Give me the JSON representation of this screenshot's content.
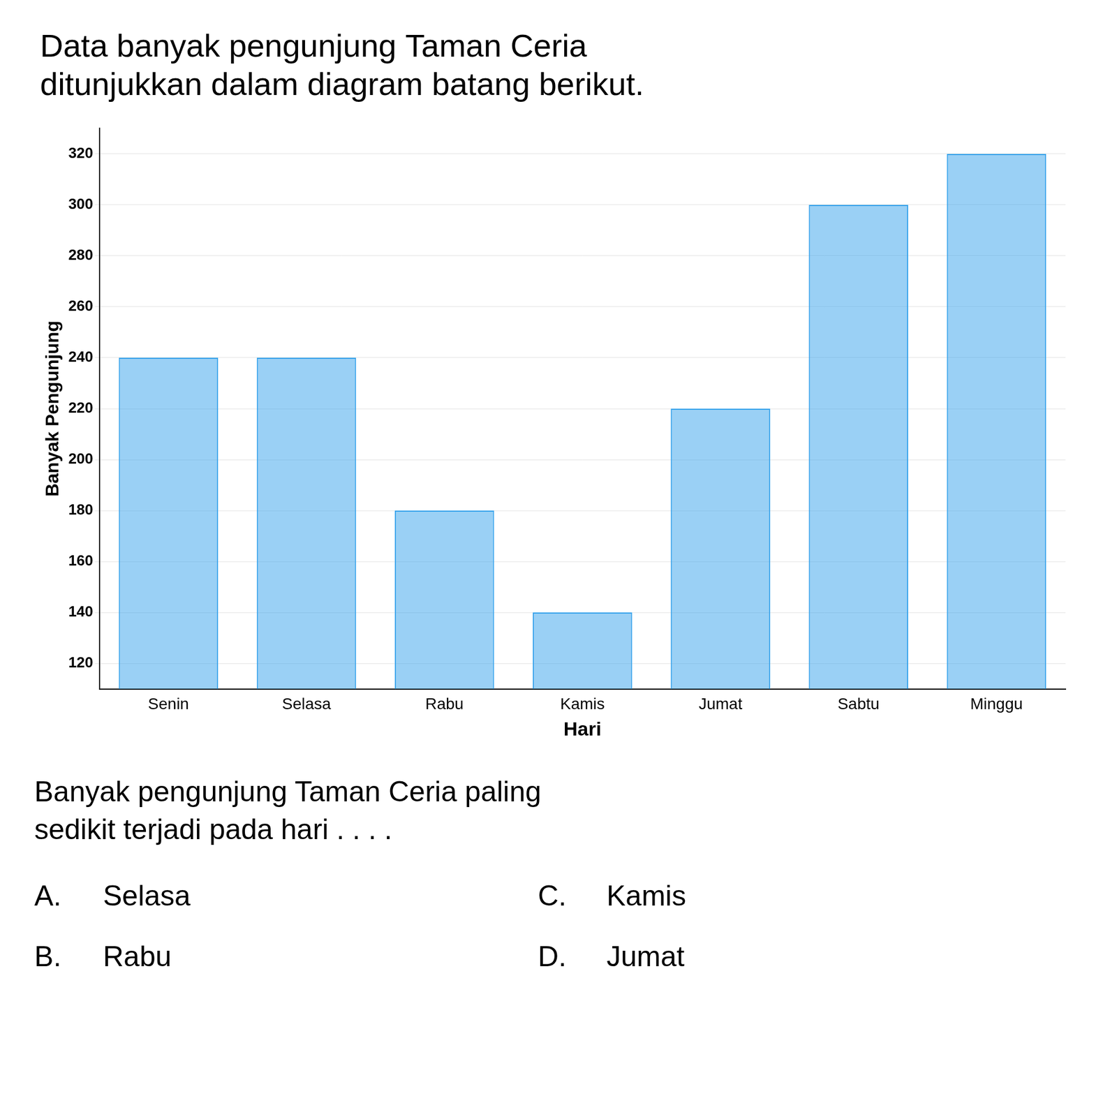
{
  "chart_data": {
    "type": "bar",
    "title": [
      "Data banyak pengunjung Taman Ceria",
      "ditunjukkan dalam diagram batang berikut."
    ],
    "xlabel": "Hari",
    "ylabel": "Banyak Pengunjung",
    "categories": [
      "Senin",
      "Selasa",
      "Rabu",
      "Kamis",
      "Jumat",
      "Sabtu",
      "Minggu"
    ],
    "values": [
      240,
      240,
      180,
      140,
      220,
      300,
      320
    ],
    "ylim": [
      110,
      330
    ],
    "yticks": [
      120,
      140,
      160,
      180,
      200,
      220,
      240,
      260,
      280,
      300,
      320
    ],
    "grid": true,
    "annotations": [
      "Banyak pengunjung Taman Ceria paling",
      "sedikit terjadi pada hari . . . .",
      "A.",
      "Selasa",
      "C.",
      "Kamis",
      "B.",
      "Rabu",
      "D.",
      "Jumat"
    ]
  }
}
